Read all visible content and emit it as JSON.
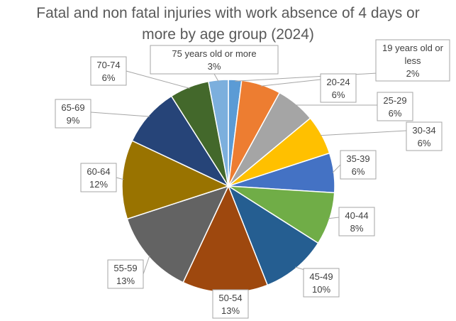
{
  "chart_data": {
    "type": "pie",
    "title": "Fatal and non fatal injuries with work absence of 4 days or more by age group (2024)",
    "legend": "none",
    "slices": [
      {
        "label": "19 years old or less",
        "value": 2,
        "percent": "2%",
        "color": "#5b9bd5"
      },
      {
        "label": "20-24",
        "value": 6,
        "percent": "6%",
        "color": "#ed7d31"
      },
      {
        "label": "25-29",
        "value": 6,
        "percent": "6%",
        "color": "#a5a5a5"
      },
      {
        "label": "30-34",
        "value": 6,
        "percent": "6%",
        "color": "#ffc000"
      },
      {
        "label": "35-39",
        "value": 6,
        "percent": "6%",
        "color": "#4472c4"
      },
      {
        "label": "40-44",
        "value": 8,
        "percent": "8%",
        "color": "#70ad47"
      },
      {
        "label": "45-49",
        "value": 10,
        "percent": "10%",
        "color": "#255e91"
      },
      {
        "label": "50-54",
        "value": 13,
        "percent": "13%",
        "color": "#9e480e"
      },
      {
        "label": "55-59",
        "value": 13,
        "percent": "13%",
        "color": "#636363"
      },
      {
        "label": "60-64",
        "value": 12,
        "percent": "12%",
        "color": "#997300"
      },
      {
        "label": "65-69",
        "value": 9,
        "percent": "9%",
        "color": "#264478"
      },
      {
        "label": "70-74",
        "value": 6,
        "percent": "6%",
        "color": "#43682b"
      },
      {
        "label": "75 years old or more",
        "value": 3,
        "percent": "3%",
        "color": "#7cafdd"
      }
    ]
  }
}
